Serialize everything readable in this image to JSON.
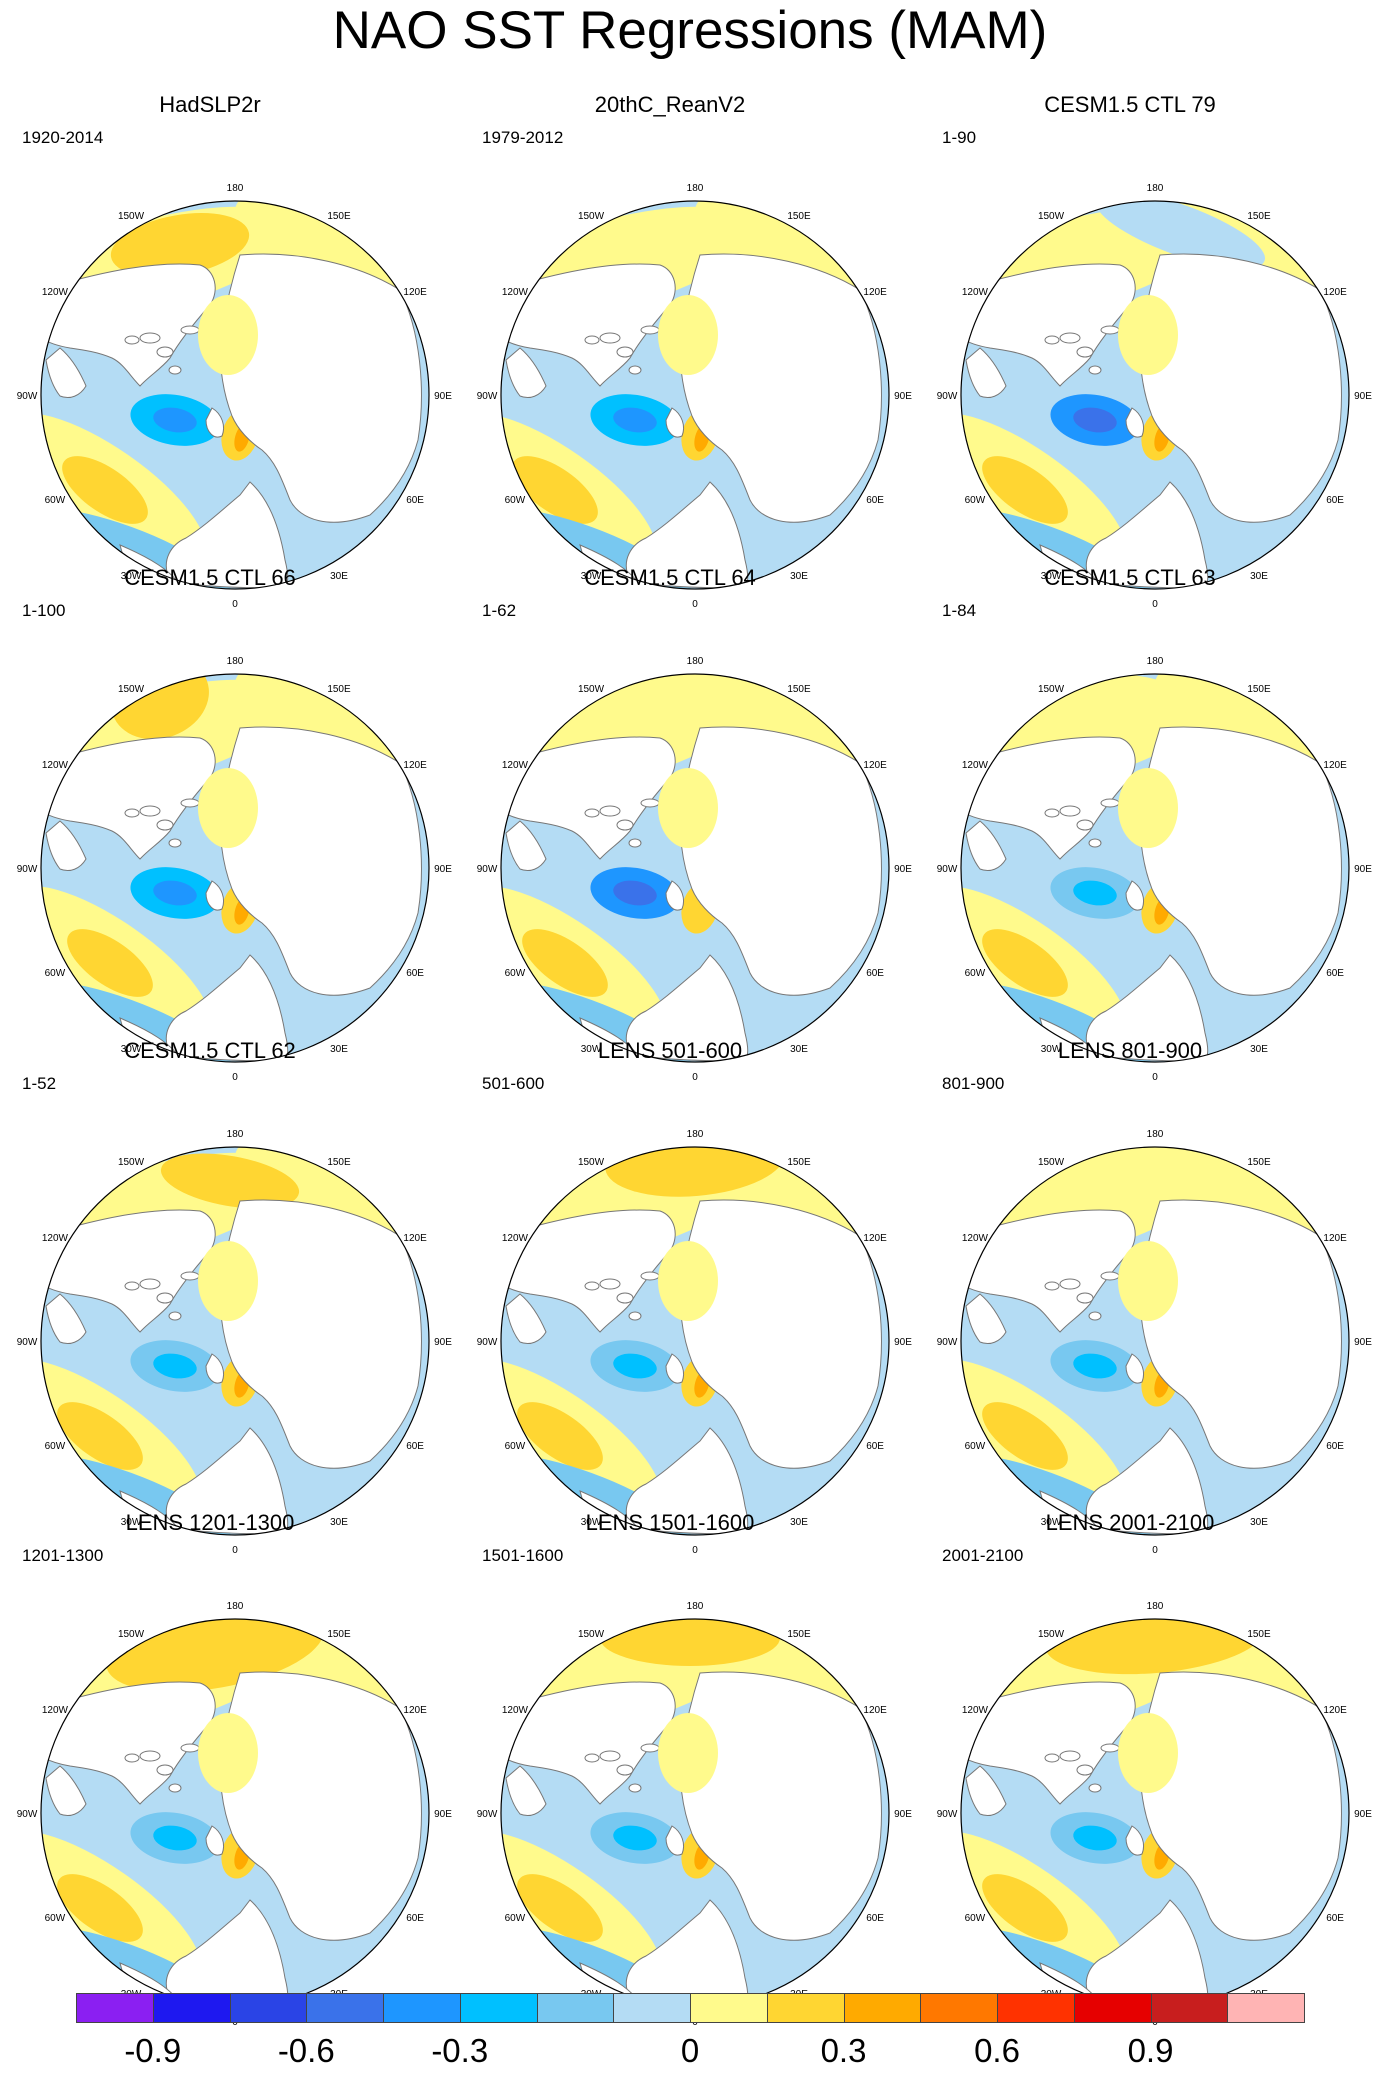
{
  "title": "NAO SST Regressions (MAM)",
  "longitude_labels": [
    "180",
    "150E",
    "120E",
    "90E",
    "60E",
    "30E",
    "0",
    "30W",
    "60W",
    "90W",
    "120W",
    "150W"
  ],
  "panels": [
    {
      "title": "HadSLP2r",
      "period": "1920-2014"
    },
    {
      "title": "20thC_ReanV2",
      "period": "1979-2012"
    },
    {
      "title": "CESM1.5 CTL 79",
      "period": "1-90"
    },
    {
      "title": "CESM1.5 CTL 66",
      "period": "1-100"
    },
    {
      "title": "CESM1.5 CTL 64",
      "period": "1-62"
    },
    {
      "title": "CESM1.5 CTL 63",
      "period": "1-84"
    },
    {
      "title": "CESM1.5 CTL 62",
      "period": "1-52"
    },
    {
      "title": "LENS 501-600",
      "period": "501-600"
    },
    {
      "title": "LENS 801-900",
      "period": "801-900"
    },
    {
      "title": "LENS 1201-1300",
      "period": "1201-1300"
    },
    {
      "title": "LENS 1501-1600",
      "period": "1501-1600"
    },
    {
      "title": "LENS 2001-2100",
      "period": "2001-2100"
    }
  ],
  "colorbar": {
    "colors": [
      "#8b1ff2",
      "#1e18f0",
      "#2a44e6",
      "#3a72ea",
      "#1e96ff",
      "#00c0ff",
      "#78c8f0",
      "#b4dcf4",
      "#fffa8c",
      "#ffd632",
      "#ffaa00",
      "#ff7800",
      "#ff3200",
      "#e60000",
      "#c81e1e",
      "#ffb4b4"
    ],
    "labels": [
      "-0.9",
      "-0.6",
      "-0.3",
      "0",
      "0.3",
      "0.6",
      "0.9"
    ],
    "label_boundaries": [
      1,
      3,
      5,
      8,
      10,
      12,
      14
    ]
  }
}
